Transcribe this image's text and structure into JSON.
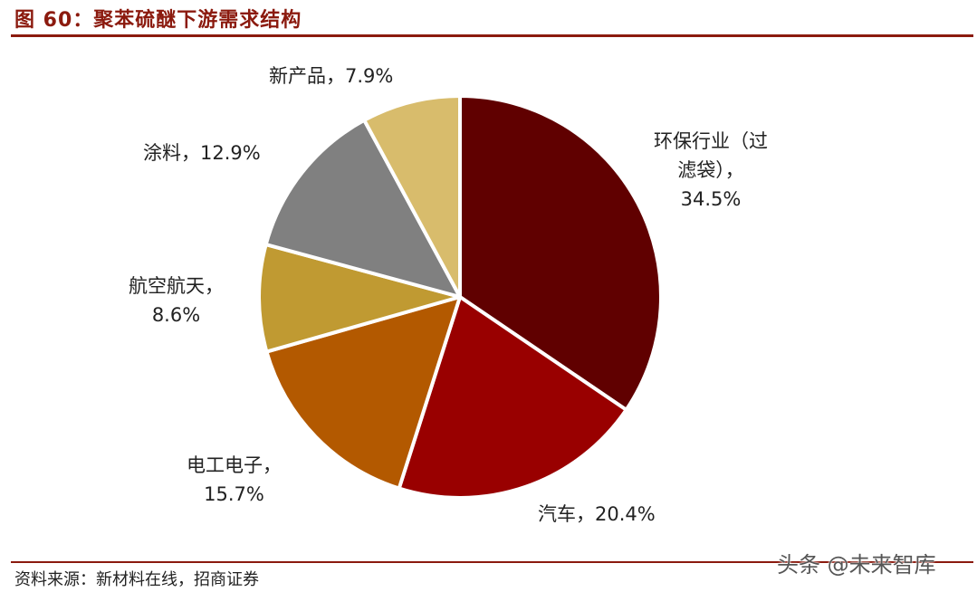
{
  "figure": {
    "title": "图 60：聚苯硫醚下游需求结构",
    "source": "资料来源：新材料在线，招商证券",
    "watermark": "头条 @未来智库"
  },
  "chart_data": {
    "type": "pie",
    "title": "图 60：聚苯硫醚下游需求结构",
    "slices": [
      {
        "name": "环保行业（过滤袋）",
        "value": 34.5,
        "color": "#600000",
        "label_lines": [
          "环保行业（过",
          "滤袋），",
          "34.5%"
        ]
      },
      {
        "name": "汽车",
        "value": 20.4,
        "color": "#990000",
        "label_lines": [
          "汽车，20.4%"
        ]
      },
      {
        "name": "电工电子",
        "value": 15.7,
        "color": "#B35900",
        "label_lines": [
          "电工电子，",
          "15.7%"
        ]
      },
      {
        "name": "航空航天",
        "value": 8.6,
        "color": "#C09A32",
        "label_lines": [
          "航空航天，",
          "8.6%"
        ]
      },
      {
        "name": "涂料",
        "value": 12.9,
        "color": "#808080",
        "label_lines": [
          "涂料，12.9%"
        ]
      },
      {
        "name": "新产品",
        "value": 7.9,
        "color": "#D8BC6C",
        "label_lines": [
          "新产品，7.9%"
        ]
      }
    ]
  }
}
